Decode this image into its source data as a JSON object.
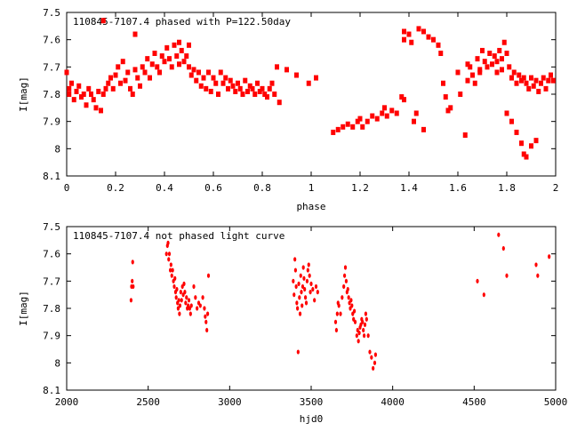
{
  "chart_data": [
    {
      "type": "scatter",
      "title": "110845-7107.4 phased with P=122.50day",
      "xlabel": "phase",
      "ylabel": "I[mag]",
      "xlim": [
        0,
        2
      ],
      "ylim": [
        8.1,
        7.5
      ],
      "y_inverted": true,
      "grid": false,
      "marker_color": "#ff0000",
      "x_ticks": [
        0,
        0.2,
        0.4,
        0.6,
        0.8,
        1,
        1.2,
        1.4,
        1.6,
        1.8,
        2
      ],
      "y_ticks": [
        7.5,
        7.6,
        7.7,
        7.8,
        7.9,
        8,
        8.1
      ],
      "x_tick_labels": [
        "0",
        "0.2",
        "0.4",
        "0.6",
        "0.8",
        "1",
        "1.2",
        "1.4",
        "1.6",
        "1.8",
        "2"
      ],
      "y_tick_labels": [
        "7.5",
        "7.6",
        "7.7",
        "7.8",
        "7.9",
        "8",
        "8.1"
      ],
      "points": [
        [
          0.0,
          7.72
        ],
        [
          0.01,
          7.78
        ],
        [
          0.01,
          7.8
        ],
        [
          0.02,
          7.76
        ],
        [
          0.03,
          7.82
        ],
        [
          0.04,
          7.79
        ],
        [
          0.05,
          7.77
        ],
        [
          0.06,
          7.81
        ],
        [
          0.07,
          7.8
        ],
        [
          0.08,
          7.84
        ],
        [
          0.09,
          7.78
        ],
        [
          0.1,
          7.8
        ],
        [
          0.11,
          7.82
        ],
        [
          0.12,
          7.85
        ],
        [
          0.13,
          7.79
        ],
        [
          0.14,
          7.86
        ],
        [
          0.15,
          7.8
        ],
        [
          0.16,
          7.78
        ],
        [
          0.17,
          7.76
        ],
        [
          0.18,
          7.74
        ],
        [
          0.19,
          7.78
        ],
        [
          0.2,
          7.73
        ],
        [
          0.21,
          7.7
        ],
        [
          0.22,
          7.76
        ],
        [
          0.23,
          7.68
        ],
        [
          0.24,
          7.75
        ],
        [
          0.25,
          7.72
        ],
        [
          0.26,
          7.78
        ],
        [
          0.27,
          7.8
        ],
        [
          0.28,
          7.71
        ],
        [
          0.29,
          7.74
        ],
        [
          0.3,
          7.77
        ],
        [
          0.31,
          7.7
        ],
        [
          0.32,
          7.72
        ],
        [
          0.33,
          7.67
        ],
        [
          0.34,
          7.74
        ],
        [
          0.35,
          7.69
        ],
        [
          0.36,
          7.65
        ],
        [
          0.37,
          7.7
        ],
        [
          0.38,
          7.72
        ],
        [
          0.39,
          7.66
        ],
        [
          0.4,
          7.68
        ],
        [
          0.41,
          7.63
        ],
        [
          0.42,
          7.67
        ],
        [
          0.43,
          7.7
        ],
        [
          0.44,
          7.62
        ],
        [
          0.45,
          7.66
        ],
        [
          0.46,
          7.69
        ],
        [
          0.47,
          7.64
        ],
        [
          0.48,
          7.68
        ],
        [
          0.49,
          7.66
        ],
        [
          0.5,
          7.7
        ],
        [
          0.51,
          7.73
        ],
        [
          0.52,
          7.71
        ],
        [
          0.53,
          7.75
        ],
        [
          0.54,
          7.72
        ],
        [
          0.55,
          7.77
        ],
        [
          0.56,
          7.74
        ],
        [
          0.57,
          7.78
        ],
        [
          0.58,
          7.72
        ],
        [
          0.59,
          7.79
        ],
        [
          0.6,
          7.74
        ],
        [
          0.61,
          7.76
        ],
        [
          0.62,
          7.8
        ],
        [
          0.63,
          7.72
        ],
        [
          0.64,
          7.76
        ],
        [
          0.65,
          7.74
        ],
        [
          0.66,
          7.78
        ],
        [
          0.67,
          7.75
        ],
        [
          0.68,
          7.77
        ],
        [
          0.69,
          7.79
        ],
        [
          0.7,
          7.76
        ],
        [
          0.71,
          7.78
        ],
        [
          0.72,
          7.8
        ],
        [
          0.73,
          7.75
        ],
        [
          0.74,
          7.79
        ],
        [
          0.75,
          7.77
        ],
        [
          0.76,
          7.78
        ],
        [
          0.77,
          7.8
        ],
        [
          0.78,
          7.76
        ],
        [
          0.79,
          7.79
        ],
        [
          0.8,
          7.78
        ],
        [
          0.81,
          7.8
        ],
        [
          0.82,
          7.81
        ],
        [
          0.83,
          7.78
        ],
        [
          0.84,
          7.76
        ],
        [
          0.85,
          7.8
        ],
        [
          0.86,
          7.7
        ],
        [
          0.87,
          7.83
        ],
        [
          0.9,
          7.71
        ],
        [
          0.94,
          7.73
        ],
        [
          0.99,
          7.76
        ],
        [
          1.02,
          7.74
        ],
        [
          1.09,
          7.94
        ],
        [
          1.11,
          7.93
        ],
        [
          1.13,
          7.92
        ],
        [
          1.15,
          7.91
        ],
        [
          1.17,
          7.92
        ],
        [
          1.19,
          7.9
        ],
        [
          1.2,
          7.89
        ],
        [
          1.21,
          7.92
        ],
        [
          1.23,
          7.9
        ],
        [
          1.25,
          7.88
        ],
        [
          1.27,
          7.89
        ],
        [
          1.29,
          7.87
        ],
        [
          1.3,
          7.85
        ],
        [
          1.31,
          7.88
        ],
        [
          1.33,
          7.86
        ],
        [
          1.35,
          7.87
        ],
        [
          1.37,
          7.81
        ],
        [
          1.38,
          7.57
        ],
        [
          1.38,
          7.6
        ],
        [
          1.4,
          7.58
        ],
        [
          1.41,
          7.61
        ],
        [
          1.42,
          7.9
        ],
        [
          1.43,
          7.87
        ],
        [
          1.44,
          7.56
        ],
        [
          1.46,
          7.57
        ],
        [
          1.48,
          7.59
        ],
        [
          1.5,
          7.6
        ],
        [
          1.52,
          7.62
        ],
        [
          1.53,
          7.65
        ],
        [
          1.54,
          7.76
        ],
        [
          1.55,
          7.81
        ],
        [
          1.56,
          7.86
        ],
        [
          1.57,
          7.85
        ],
        [
          1.6,
          7.72
        ],
        [
          1.61,
          7.8
        ],
        [
          1.63,
          7.95
        ],
        [
          1.64,
          7.75
        ],
        [
          1.65,
          7.7
        ],
        [
          1.66,
          7.73
        ],
        [
          1.67,
          7.76
        ],
        [
          1.68,
          7.67
        ],
        [
          1.69,
          7.71
        ],
        [
          1.7,
          7.64
        ],
        [
          1.71,
          7.68
        ],
        [
          1.72,
          7.7
        ],
        [
          1.73,
          7.65
        ],
        [
          1.74,
          7.69
        ],
        [
          1.75,
          7.66
        ],
        [
          1.76,
          7.72
        ],
        [
          1.77,
          7.64
        ],
        [
          1.78,
          7.67
        ],
        [
          1.79,
          7.61
        ],
        [
          1.8,
          7.65
        ],
        [
          1.81,
          7.7
        ],
        [
          1.82,
          7.74
        ],
        [
          1.83,
          7.72
        ],
        [
          1.84,
          7.76
        ],
        [
          1.85,
          7.73
        ],
        [
          1.86,
          7.75
        ],
        [
          1.87,
          7.74
        ],
        [
          1.88,
          7.76
        ],
        [
          1.89,
          7.78
        ],
        [
          1.9,
          7.74
        ],
        [
          1.91,
          7.77
        ],
        [
          1.92,
          7.75
        ],
        [
          1.93,
          7.79
        ],
        [
          1.94,
          7.76
        ],
        [
          1.95,
          7.74
        ],
        [
          1.96,
          7.78
        ],
        [
          1.97,
          7.75
        ],
        [
          1.98,
          7.73
        ],
        [
          1.99,
          7.75
        ],
        [
          1.8,
          7.87
        ],
        [
          1.82,
          7.9
        ],
        [
          1.84,
          7.94
        ],
        [
          1.86,
          7.98
        ],
        [
          1.87,
          8.02
        ],
        [
          1.88,
          8.03
        ],
        [
          1.9,
          7.99
        ],
        [
          1.92,
          7.97
        ],
        [
          1.64,
          7.69
        ],
        [
          1.69,
          7.72
        ],
        [
          1.76,
          7.68
        ],
        [
          1.78,
          7.71
        ],
        [
          0.46,
          7.61
        ],
        [
          0.5,
          7.62
        ],
        [
          0.15,
          7.53
        ],
        [
          0.28,
          7.58
        ],
        [
          1.38,
          7.82
        ],
        [
          1.46,
          7.93
        ]
      ]
    },
    {
      "type": "scatter",
      "title": "110845-7107.4 not phased light curve",
      "xlabel": "hjd0",
      "ylabel": "I[mag]",
      "xlim": [
        2000,
        5000
      ],
      "ylim": [
        8.1,
        7.5
      ],
      "y_inverted": true,
      "grid": false,
      "marker_color": "#ff0000",
      "x_ticks": [
        2000,
        2500,
        3000,
        3500,
        4000,
        4500,
        5000
      ],
      "y_ticks": [
        7.5,
        7.6,
        7.7,
        7.8,
        7.9,
        8,
        8.1
      ],
      "x_tick_labels": [
        "2000",
        "2500",
        "3000",
        "3500",
        "4000",
        "4500",
        "5000"
      ],
      "y_tick_labels": [
        "7.5",
        "7.6",
        "7.7",
        "7.8",
        "7.9",
        "8",
        "8.1"
      ],
      "points": [
        [
          2395,
          7.77
        ],
        [
          2398,
          7.72
        ],
        [
          2402,
          7.7
        ],
        [
          2405,
          7.63
        ],
        [
          2408,
          7.72
        ],
        [
          2612,
          7.6
        ],
        [
          2618,
          7.57
        ],
        [
          2622,
          7.56
        ],
        [
          2626,
          7.62
        ],
        [
          2630,
          7.6
        ],
        [
          2636,
          7.66
        ],
        [
          2640,
          7.64
        ],
        [
          2645,
          7.68
        ],
        [
          2650,
          7.66
        ],
        [
          2655,
          7.7
        ],
        [
          2660,
          7.72
        ],
        [
          2664,
          7.69
        ],
        [
          2668,
          7.74
        ],
        [
          2672,
          7.76
        ],
        [
          2676,
          7.73
        ],
        [
          2680,
          7.78
        ],
        [
          2684,
          7.8
        ],
        [
          2688,
          7.77
        ],
        [
          2692,
          7.82
        ],
        [
          2695,
          7.79
        ],
        [
          2700,
          7.74
        ],
        [
          2705,
          7.77
        ],
        [
          2710,
          7.72
        ],
        [
          2715,
          7.75
        ],
        [
          2720,
          7.71
        ],
        [
          2725,
          7.74
        ],
        [
          2730,
          7.78
        ],
        [
          2735,
          7.76
        ],
        [
          2740,
          7.8
        ],
        [
          2745,
          7.79
        ],
        [
          2750,
          7.77
        ],
        [
          2755,
          7.8
        ],
        [
          2760,
          7.82
        ],
        [
          2765,
          7.79
        ],
        [
          2780,
          7.72
        ],
        [
          2790,
          7.76
        ],
        [
          2800,
          7.8
        ],
        [
          2810,
          7.78
        ],
        [
          2820,
          7.79
        ],
        [
          2835,
          7.76
        ],
        [
          2845,
          7.8
        ],
        [
          2850,
          7.83
        ],
        [
          2855,
          7.85
        ],
        [
          2860,
          7.88
        ],
        [
          2865,
          7.82
        ],
        [
          2870,
          7.68
        ],
        [
          3390,
          7.7
        ],
        [
          3395,
          7.75
        ],
        [
          3400,
          7.62
        ],
        [
          3404,
          7.66
        ],
        [
          3408,
          7.72
        ],
        [
          3412,
          7.78
        ],
        [
          3416,
          7.8
        ],
        [
          3420,
          7.96
        ],
        [
          3424,
          7.71
        ],
        [
          3428,
          7.76
        ],
        [
          3432,
          7.82
        ],
        [
          3436,
          7.68
        ],
        [
          3440,
          7.74
        ],
        [
          3444,
          7.79
        ],
        [
          3448,
          7.72
        ],
        [
          3452,
          7.65
        ],
        [
          3456,
          7.69
        ],
        [
          3460,
          7.73
        ],
        [
          3465,
          7.76
        ],
        [
          3470,
          7.78
        ],
        [
          3475,
          7.7
        ],
        [
          3480,
          7.66
        ],
        [
          3485,
          7.64
        ],
        [
          3490,
          7.68
        ],
        [
          3495,
          7.74
        ],
        [
          3500,
          7.71
        ],
        [
          3510,
          7.73
        ],
        [
          3520,
          7.77
        ],
        [
          3530,
          7.72
        ],
        [
          3540,
          7.74
        ],
        [
          3650,
          7.85
        ],
        [
          3655,
          7.88
        ],
        [
          3660,
          7.82
        ],
        [
          3665,
          7.78
        ],
        [
          3670,
          7.79
        ],
        [
          3680,
          7.82
        ],
        [
          3690,
          7.76
        ],
        [
          3700,
          7.72
        ],
        [
          3705,
          7.68
        ],
        [
          3710,
          7.65
        ],
        [
          3715,
          7.7
        ],
        [
          3720,
          7.74
        ],
        [
          3725,
          7.73
        ],
        [
          3730,
          7.76
        ],
        [
          3735,
          7.78
        ],
        [
          3740,
          7.8
        ],
        [
          3745,
          7.77
        ],
        [
          3750,
          7.79
        ],
        [
          3755,
          7.82
        ],
        [
          3760,
          7.84
        ],
        [
          3765,
          7.81
        ],
        [
          3770,
          7.85
        ],
        [
          3780,
          7.9
        ],
        [
          3785,
          7.88
        ],
        [
          3790,
          7.92
        ],
        [
          3795,
          7.89
        ],
        [
          3800,
          7.87
        ],
        [
          3805,
          7.86
        ],
        [
          3810,
          7.84
        ],
        [
          3815,
          7.85
        ],
        [
          3820,
          7.88
        ],
        [
          3825,
          7.9
        ],
        [
          3830,
          7.86
        ],
        [
          3835,
          7.82
        ],
        [
          3840,
          7.84
        ],
        [
          3850,
          7.9
        ],
        [
          3860,
          7.96
        ],
        [
          3870,
          7.98
        ],
        [
          3880,
          8.02
        ],
        [
          3890,
          8.0
        ],
        [
          3895,
          7.97
        ],
        [
          4520,
          7.7
        ],
        [
          4560,
          7.75
        ],
        [
          4650,
          7.53
        ],
        [
          4680,
          7.58
        ],
        [
          4700,
          7.68
        ],
        [
          4880,
          7.64
        ],
        [
          4890,
          7.68
        ],
        [
          4960,
          7.61
        ]
      ]
    }
  ]
}
